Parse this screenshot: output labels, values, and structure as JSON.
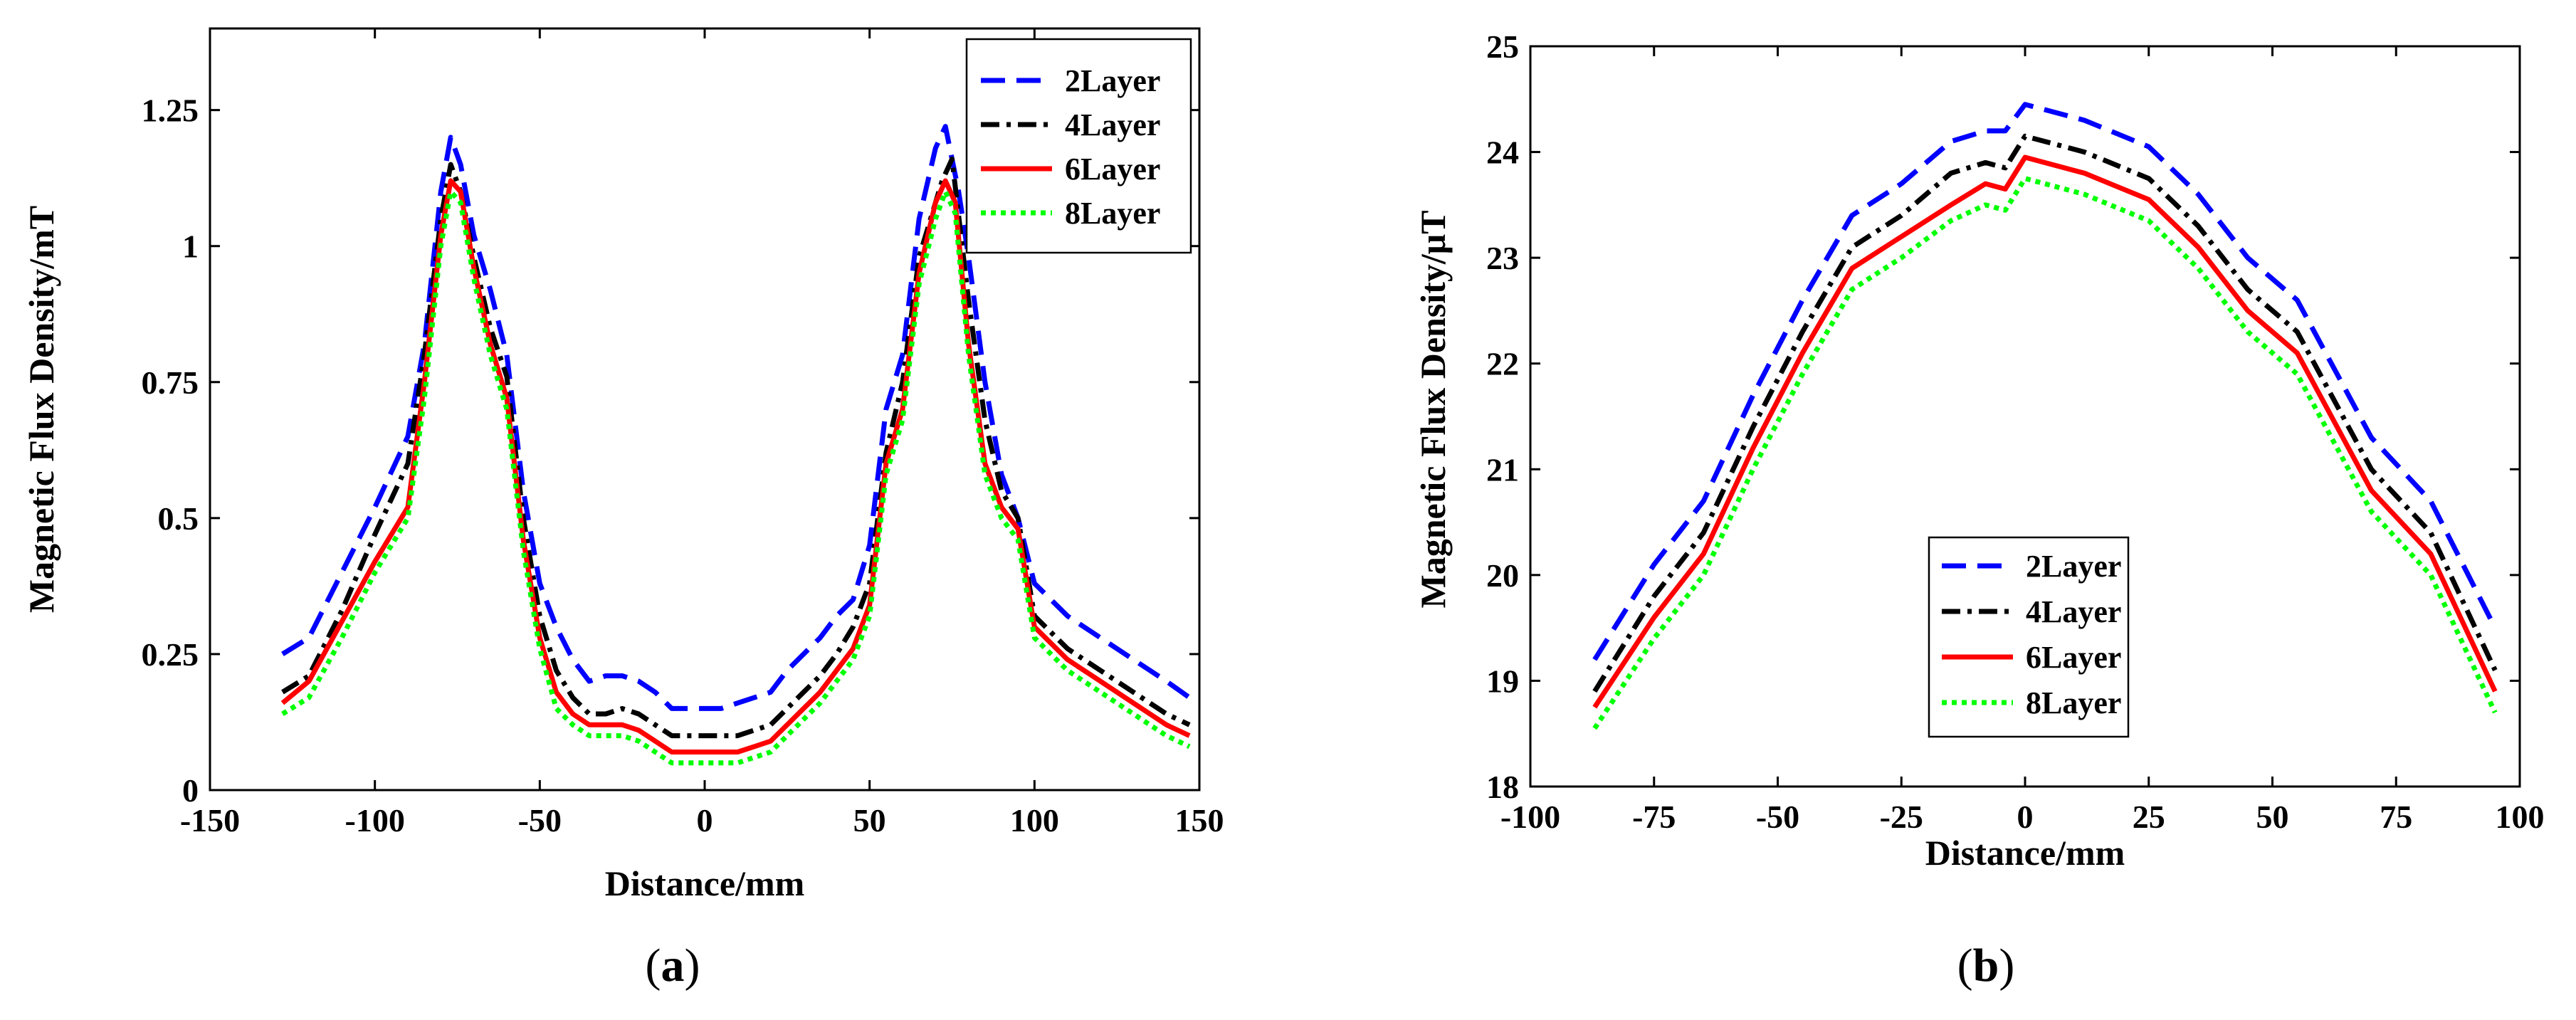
{
  "colors": {
    "2Layer": "#0000ff",
    "4Layer": "#000000",
    "6Layer": "#ff0000",
    "8Layer": "#00ff00"
  },
  "chart_data": [
    {
      "type": "line",
      "panel": "a",
      "title": "",
      "xlabel": "Distance/mm",
      "ylabel": "Magnetic Flux Density/mT",
      "xlim": [
        -150,
        150
      ],
      "ylim": [
        0,
        1.4
      ],
      "xticks": [
        -150,
        -100,
        -50,
        0,
        50,
        100,
        150
      ],
      "xtick_labels": [
        "-150",
        "-100",
        "-50",
        "0",
        "50",
        "100",
        "150"
      ],
      "yticks": [
        0,
        0.25,
        0.5,
        0.75,
        1,
        1.25
      ],
      "ytick_labels": [
        "0",
        "0.25",
        "0.5",
        "0.75",
        "1",
        "1.25"
      ],
      "legend_position": "top-right",
      "grid": false,
      "series": [
        {
          "name": "2Layer",
          "style": "dashed",
          "x": [
            -128,
            -120,
            -110,
            -100,
            -90,
            -85,
            -80,
            -77,
            -74,
            -70,
            -65,
            -60,
            -55,
            -50,
            -45,
            -40,
            -35,
            -30,
            -25,
            -20,
            -15,
            -10,
            -5,
            0,
            5,
            10,
            15,
            20,
            25,
            30,
            35,
            40,
            45,
            50,
            55,
            60,
            65,
            70,
            73,
            77,
            80,
            85,
            90,
            95,
            100,
            110,
            120,
            130,
            140,
            147
          ],
          "y": [
            0.25,
            0.28,
            0.4,
            0.52,
            0.65,
            0.82,
            1.1,
            1.2,
            1.15,
            1.02,
            0.92,
            0.8,
            0.55,
            0.38,
            0.3,
            0.24,
            0.2,
            0.21,
            0.21,
            0.2,
            0.18,
            0.15,
            0.15,
            0.15,
            0.15,
            0.16,
            0.17,
            0.18,
            0.22,
            0.25,
            0.28,
            0.32,
            0.35,
            0.45,
            0.7,
            0.8,
            1.05,
            1.18,
            1.22,
            1.1,
            0.98,
            0.75,
            0.58,
            0.5,
            0.38,
            0.32,
            0.28,
            0.24,
            0.2,
            0.17
          ]
        },
        {
          "name": "4Layer",
          "style": "dashdot",
          "x": [
            -128,
            -120,
            -110,
            -100,
            -90,
            -85,
            -80,
            -77,
            -74,
            -70,
            -65,
            -60,
            -55,
            -50,
            -45,
            -40,
            -35,
            -30,
            -25,
            -20,
            -15,
            -10,
            -5,
            0,
            5,
            10,
            15,
            20,
            25,
            30,
            35,
            40,
            45,
            50,
            55,
            60,
            65,
            70,
            72,
            75,
            80,
            85,
            90,
            95,
            100,
            110,
            120,
            130,
            140,
            147
          ],
          "y": [
            0.18,
            0.21,
            0.33,
            0.47,
            0.6,
            0.8,
            1.05,
            1.15,
            1.1,
            0.98,
            0.85,
            0.76,
            0.5,
            0.32,
            0.22,
            0.17,
            0.14,
            0.14,
            0.15,
            0.14,
            0.12,
            0.1,
            0.1,
            0.1,
            0.1,
            0.1,
            0.11,
            0.12,
            0.15,
            0.18,
            0.21,
            0.25,
            0.3,
            0.38,
            0.62,
            0.75,
            0.98,
            1.08,
            1.12,
            1.16,
            0.9,
            0.68,
            0.55,
            0.5,
            0.32,
            0.26,
            0.22,
            0.18,
            0.14,
            0.12
          ]
        },
        {
          "name": "6Layer",
          "style": "solid",
          "x": [
            -128,
            -120,
            -110,
            -100,
            -90,
            -85,
            -80,
            -77,
            -74,
            -70,
            -65,
            -60,
            -55,
            -50,
            -45,
            -40,
            -35,
            -30,
            -25,
            -20,
            -15,
            -10,
            -5,
            0,
            5,
            10,
            15,
            20,
            25,
            30,
            35,
            40,
            45,
            50,
            55,
            60,
            65,
            70,
            73,
            76,
            80,
            85,
            90,
            95,
            100,
            110,
            120,
            130,
            140,
            147
          ],
          "y": [
            0.16,
            0.2,
            0.31,
            0.42,
            0.52,
            0.75,
            1.02,
            1.12,
            1.1,
            0.96,
            0.82,
            0.72,
            0.46,
            0.28,
            0.18,
            0.14,
            0.12,
            0.12,
            0.12,
            0.11,
            0.09,
            0.07,
            0.07,
            0.07,
            0.07,
            0.07,
            0.08,
            0.09,
            0.12,
            0.15,
            0.18,
            0.22,
            0.26,
            0.34,
            0.6,
            0.7,
            0.95,
            1.08,
            1.12,
            1.08,
            0.82,
            0.6,
            0.52,
            0.48,
            0.3,
            0.24,
            0.2,
            0.16,
            0.12,
            0.1
          ]
        },
        {
          "name": "8Layer",
          "style": "dotted",
          "x": [
            -128,
            -120,
            -110,
            -100,
            -90,
            -85,
            -80,
            -77,
            -74,
            -70,
            -65,
            -60,
            -55,
            -50,
            -45,
            -40,
            -35,
            -30,
            -25,
            -20,
            -15,
            -10,
            -5,
            0,
            5,
            10,
            15,
            20,
            25,
            30,
            35,
            40,
            45,
            50,
            55,
            60,
            65,
            70,
            73,
            76,
            80,
            85,
            90,
            95,
            100,
            110,
            120,
            130,
            140,
            147
          ],
          "y": [
            0.14,
            0.17,
            0.28,
            0.4,
            0.5,
            0.72,
            1.0,
            1.1,
            1.08,
            0.94,
            0.8,
            0.7,
            0.44,
            0.26,
            0.15,
            0.12,
            0.1,
            0.1,
            0.1,
            0.09,
            0.07,
            0.05,
            0.05,
            0.05,
            0.05,
            0.05,
            0.06,
            0.07,
            0.1,
            0.13,
            0.16,
            0.2,
            0.24,
            0.32,
            0.58,
            0.68,
            0.93,
            1.05,
            1.1,
            1.06,
            0.8,
            0.58,
            0.5,
            0.46,
            0.28,
            0.22,
            0.18,
            0.14,
            0.1,
            0.08
          ]
        }
      ]
    },
    {
      "type": "line",
      "panel": "b",
      "title": "",
      "xlabel": "Distance/mm",
      "ylabel": "Magnetic Flux Density/μT",
      "xlim": [
        -100,
        100
      ],
      "ylim": [
        18,
        25
      ],
      "xticks": [
        -100,
        -75,
        -50,
        -25,
        0,
        25,
        50,
        75,
        100
      ],
      "xtick_labels": [
        "-100",
        "-75",
        "-50",
        "-25",
        "0",
        "25",
        "50",
        "75",
        "100"
      ],
      "yticks": [
        18,
        19,
        20,
        21,
        22,
        23,
        24,
        25
      ],
      "ytick_labels": [
        "18",
        "19",
        "20",
        "21",
        "22",
        "23",
        "24",
        "25"
      ],
      "legend_position": "bottom-center",
      "grid": false,
      "series": [
        {
          "name": "2Layer",
          "style": "dashed",
          "x": [
            -87,
            -75,
            -65,
            -55,
            -45,
            -35,
            -25,
            -15,
            -8,
            -4,
            0,
            12,
            25,
            35,
            45,
            55,
            70,
            82,
            95
          ],
          "y": [
            19.2,
            20.1,
            20.7,
            21.7,
            22.6,
            23.4,
            23.7,
            24.1,
            24.2,
            24.2,
            24.45,
            24.3,
            24.05,
            23.6,
            23.0,
            22.6,
            21.3,
            20.7,
            19.5
          ]
        },
        {
          "name": "4Layer",
          "style": "dashdot",
          "x": [
            -87,
            -75,
            -65,
            -55,
            -45,
            -35,
            -25,
            -15,
            -8,
            -4,
            0,
            12,
            25,
            35,
            45,
            55,
            70,
            82,
            95
          ],
          "y": [
            18.9,
            19.8,
            20.4,
            21.4,
            22.3,
            23.1,
            23.4,
            23.8,
            23.9,
            23.85,
            24.15,
            24.0,
            23.75,
            23.3,
            22.7,
            22.3,
            21.0,
            20.4,
            19.1
          ]
        },
        {
          "name": "6Layer",
          "style": "solid",
          "x": [
            -87,
            -75,
            -65,
            -55,
            -45,
            -35,
            -25,
            -15,
            -8,
            -4,
            0,
            12,
            25,
            35,
            45,
            55,
            70,
            82,
            95
          ],
          "y": [
            18.75,
            19.6,
            20.2,
            21.2,
            22.1,
            22.9,
            23.2,
            23.5,
            23.7,
            23.65,
            23.95,
            23.8,
            23.55,
            23.1,
            22.5,
            22.1,
            20.8,
            20.2,
            18.9
          ]
        },
        {
          "name": "8Layer",
          "style": "dotted",
          "x": [
            -87,
            -75,
            -65,
            -55,
            -45,
            -35,
            -25,
            -15,
            -8,
            -4,
            0,
            12,
            25,
            35,
            45,
            55,
            70,
            82,
            95
          ],
          "y": [
            18.55,
            19.4,
            20.0,
            21.0,
            21.9,
            22.7,
            23.0,
            23.35,
            23.5,
            23.45,
            23.75,
            23.6,
            23.35,
            22.9,
            22.3,
            21.9,
            20.6,
            20.0,
            18.7
          ]
        }
      ]
    }
  ],
  "panels": {
    "a": "a",
    "b": "b"
  }
}
